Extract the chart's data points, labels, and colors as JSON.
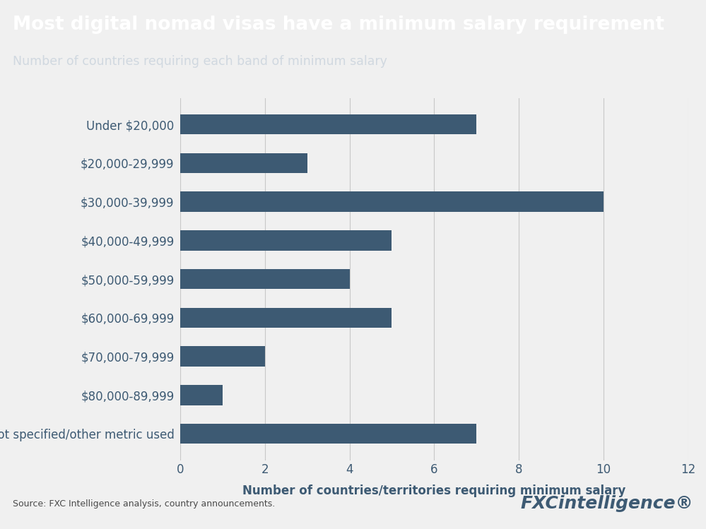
{
  "title": "Most digital nomad visas have a minimum salary requirement",
  "subtitle": "Number of countries requiring each band of minimum salary",
  "xlabel": "Number of countries/territories requiring minimum salary",
  "categories": [
    "Under $20,000",
    "$20,000-29,999",
    "$30,000-39,999",
    "$40,000-49,999",
    "$50,000-59,999",
    "$60,000-69,999",
    "$70,000-79,999",
    "$80,000-89,999",
    "Not specified/other metric used"
  ],
  "values": [
    7,
    3,
    10,
    5,
    4,
    5,
    2,
    1,
    7
  ],
  "bar_color": "#3d5a73",
  "header_bg_color": "#3d5a73",
  "chart_bg_color": "#f0f0f0",
  "title_color": "#ffffff",
  "subtitle_color": "#d0d8e0",
  "label_color": "#3d5a73",
  "xlabel_color": "#3d5a73",
  "tick_color": "#3d5a73",
  "source_text": "Source: FXC Intelligence analysis, country announcements.",
  "brand_text": "FXCintelligence®",
  "xlim": [
    0,
    12
  ],
  "xticks": [
    0,
    2,
    4,
    6,
    8,
    10,
    12
  ],
  "title_fontsize": 19,
  "subtitle_fontsize": 12.5,
  "label_fontsize": 12,
  "xlabel_fontsize": 12,
  "tick_fontsize": 12,
  "source_fontsize": 9,
  "brand_fontsize": 18
}
